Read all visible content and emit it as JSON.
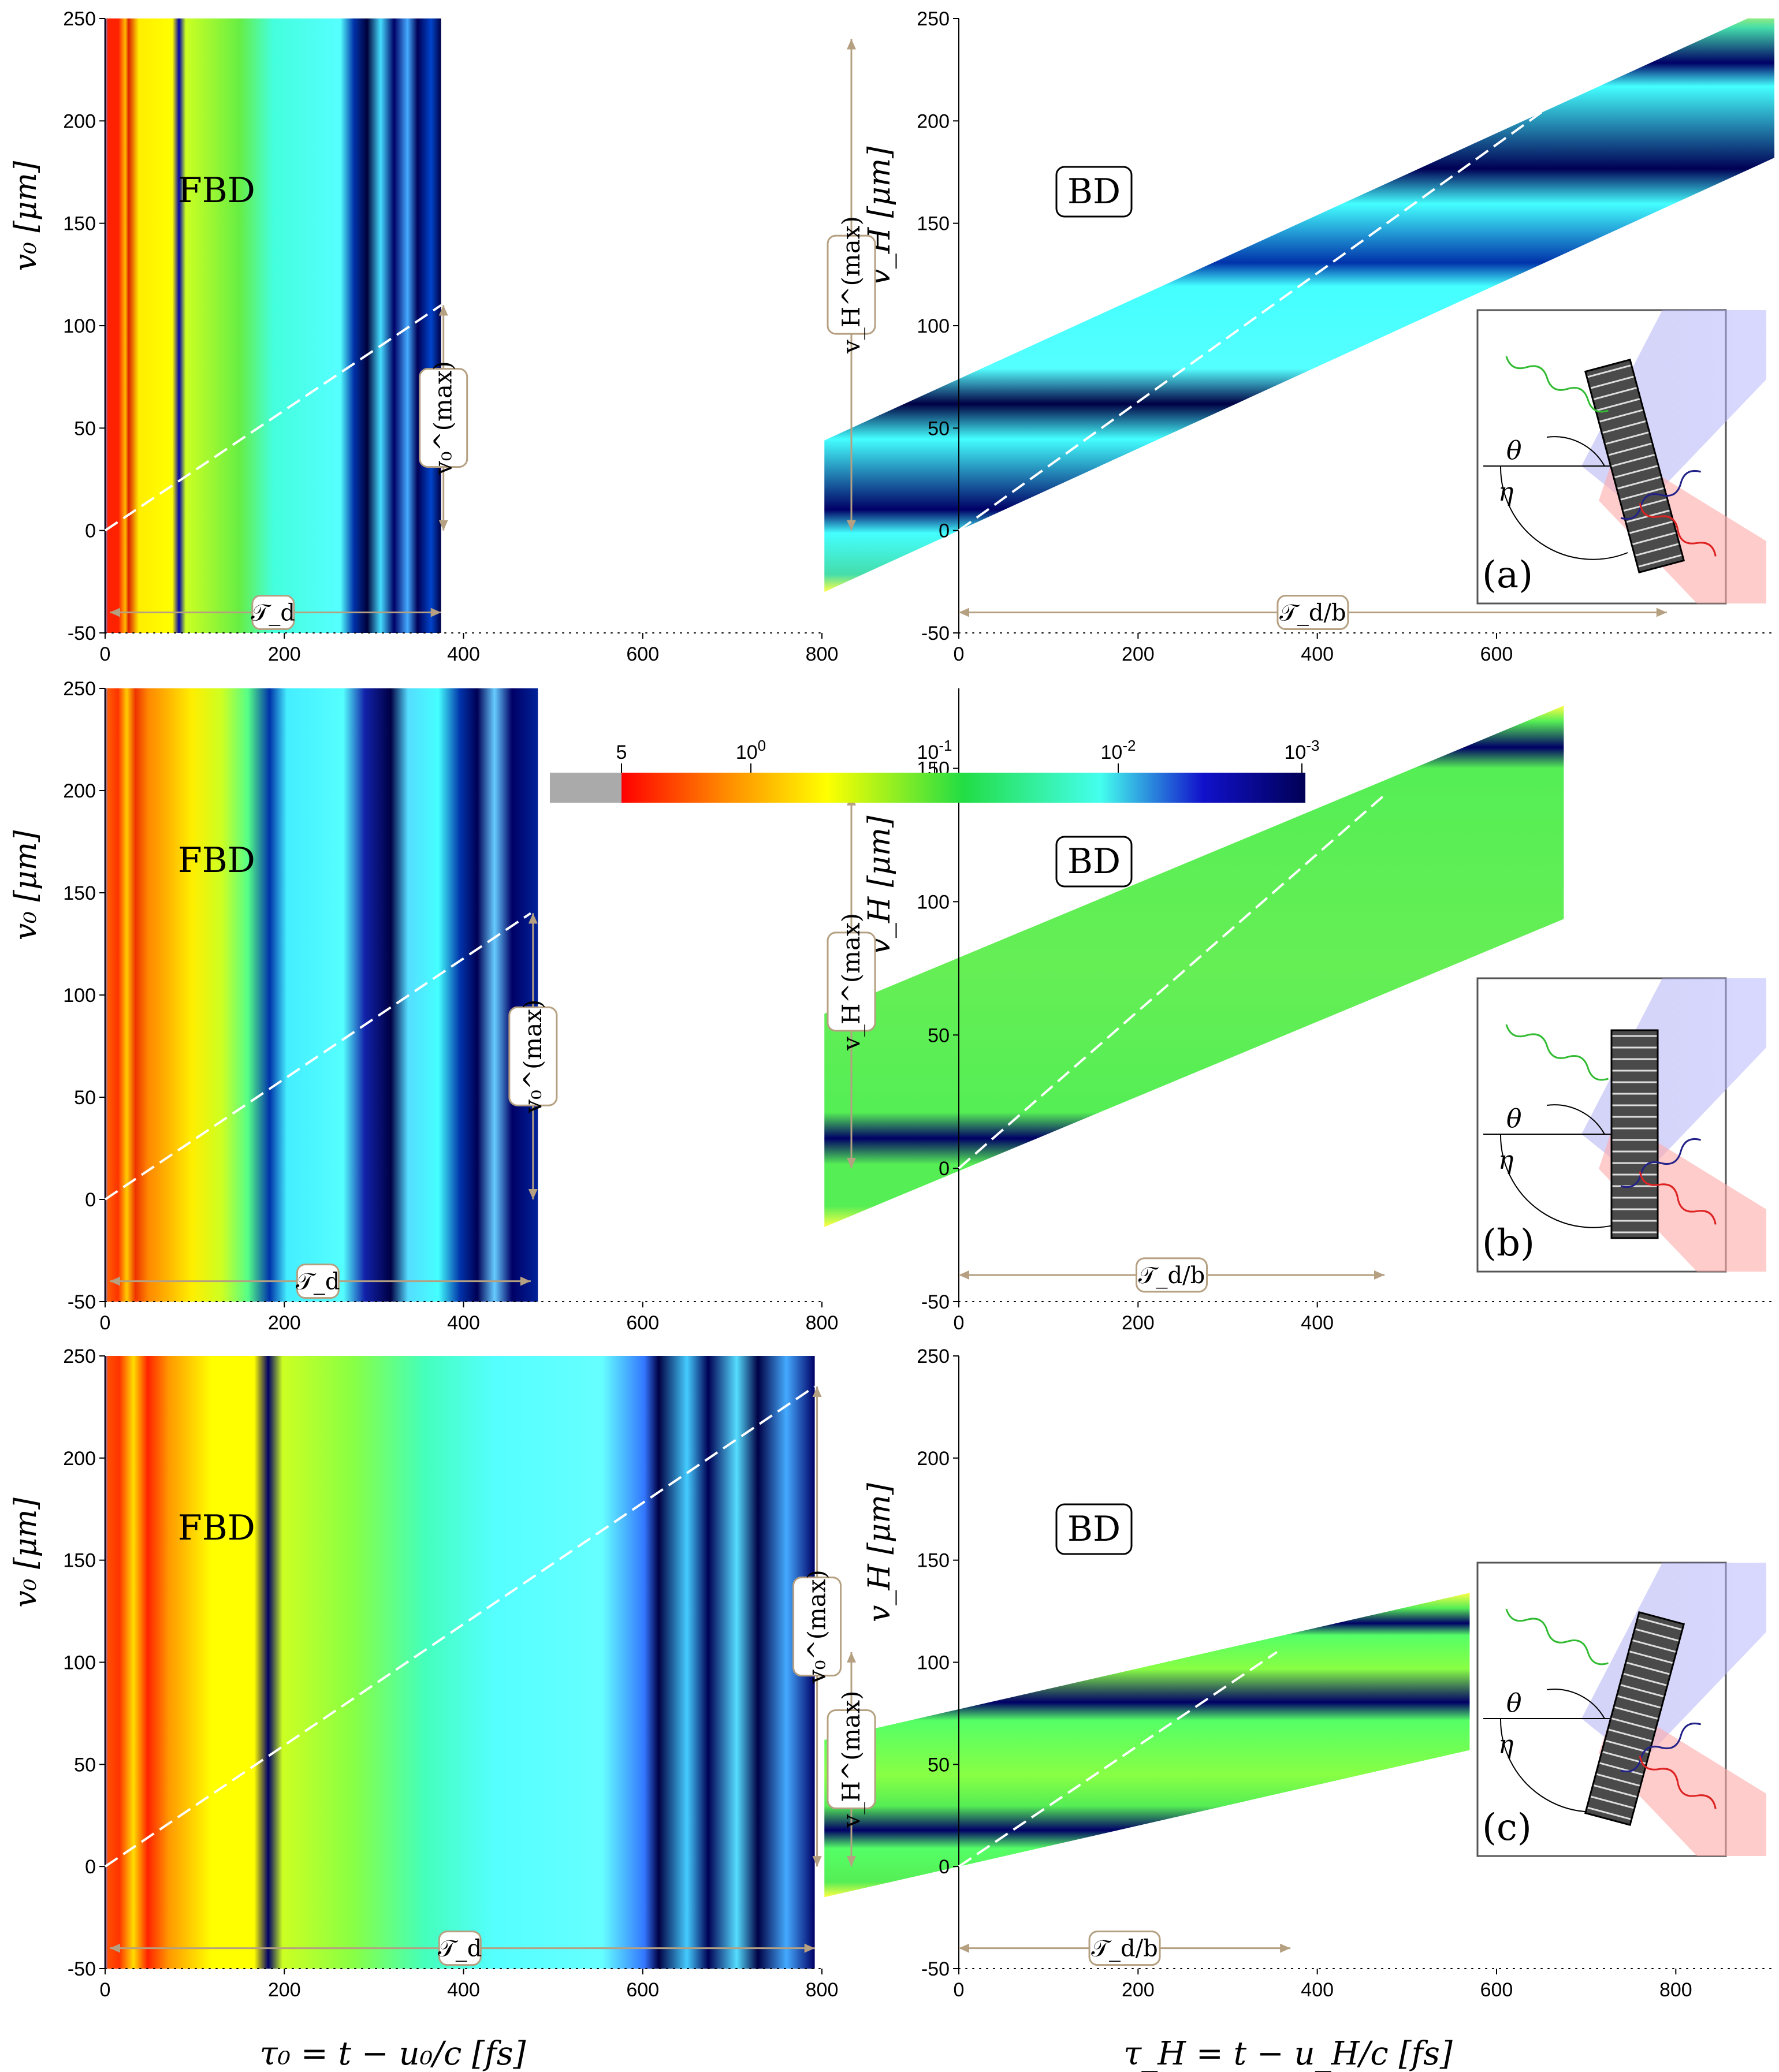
{
  "figure": {
    "panel_letters": [
      "(a)",
      "(b)",
      "(c)"
    ],
    "fbd_label": "FBD",
    "bd_label": "BD",
    "annotations": {
      "v0_max": "v₀^(max)",
      "vH_max": "v_H^(max)",
      "Td": "𝒯_d",
      "Td_over_b": "𝒯_d/b",
      "theta": "θ",
      "eta": "η"
    },
    "xlabel_left": "τ₀ = t − u₀/c [fs]",
    "xlabel_right": "τ_H = t − u_H/c [fs]",
    "ylabel_left": "v₀ [μm]",
    "ylabel_right": "v_H [μm]"
  },
  "colorbar": {
    "tick_labels": [
      "5",
      "10^0",
      "10^-1",
      "10^-2",
      "10^-3"
    ],
    "colors": [
      "#aaaaaa",
      "#ff0000",
      "#ffff00",
      "#22dd44",
      "#44ffee",
      "#1111cc",
      "#000055"
    ]
  },
  "chart_data": [
    {
      "type": "heatmap",
      "panel": "a-left",
      "label": "FBD",
      "xlim": [
        0,
        800
      ],
      "ylim": [
        -50,
        250
      ],
      "x_ticks": [
        0,
        200,
        400,
        600,
        800
      ],
      "y_ticks": [
        -50,
        0,
        50,
        100,
        150,
        200,
        250
      ],
      "ylabel": "v₀ [μm]",
      "data_extent_x": [
        0,
        375
      ],
      "dashed_line": [
        [
          0,
          0
        ],
        [
          375,
          110
        ]
      ],
      "v_max": 110,
      "Td": 375
    },
    {
      "type": "heatmap",
      "panel": "a-right",
      "label": "BD",
      "xlim": [
        0,
        910
      ],
      "ylim": [
        -50,
        250
      ],
      "x_ticks": [
        0,
        200,
        400,
        600
      ],
      "y_ticks": [
        -50,
        0,
        50,
        100,
        150,
        200,
        250
      ],
      "ylabel": "v_H [μm]",
      "band": {
        "x0": -150,
        "x1": 915,
        "lower_at_start": -30,
        "upper_at_start": 44,
        "slope": 0.2
      },
      "dashed_line": [
        [
          0,
          0
        ],
        [
          780,
          245
        ]
      ],
      "v_max": 240,
      "Td_over_b": 790
    },
    {
      "type": "heatmap",
      "panel": "b-left",
      "label": "FBD",
      "xlim": [
        0,
        800
      ],
      "ylim": [
        -50,
        250
      ],
      "x_ticks": [
        0,
        200,
        400,
        600,
        800
      ],
      "y_ticks": [
        -50,
        0,
        50,
        100,
        150,
        200,
        250
      ],
      "ylabel": "v₀ [μm]",
      "data_extent_x": [
        0,
        483
      ],
      "dashed_line": [
        [
          0,
          0
        ],
        [
          475,
          140
        ]
      ],
      "v_max": 140,
      "Td": 475
    },
    {
      "type": "heatmap",
      "panel": "b-right",
      "label": "BD",
      "xlim": [
        0,
        910
      ],
      "ylim": [
        -50,
        180
      ],
      "x_ticks": [
        0,
        200,
        400
      ],
      "y_ticks": [
        -50,
        0,
        50,
        100,
        150
      ],
      "ylabel": "v_H [μm]",
      "band": {
        "x0": -150,
        "x1": 675,
        "lower_at_start": -22,
        "upper_at_start": 58,
        "slope": 0.14
      },
      "dashed_line": [
        [
          0,
          0
        ],
        [
          475,
          140
        ]
      ],
      "v_max": 140,
      "Td_over_b": 475
    },
    {
      "type": "heatmap",
      "panel": "c-left",
      "label": "FBD",
      "xlim": [
        0,
        800
      ],
      "ylim": [
        -50,
        250
      ],
      "x_ticks": [
        0,
        200,
        400,
        600,
        800
      ],
      "y_ticks": [
        -50,
        0,
        50,
        100,
        150,
        200,
        250
      ],
      "ylabel": "v₀ [μm]",
      "data_extent_x": [
        0,
        792
      ],
      "dashed_line": [
        [
          0,
          0
        ],
        [
          792,
          235
        ]
      ],
      "v_max": 235,
      "Td": 792
    },
    {
      "type": "heatmap",
      "panel": "c-right",
      "label": "BD",
      "xlim": [
        0,
        910
      ],
      "ylim": [
        -50,
        250
      ],
      "x_ticks": [
        0,
        200,
        400,
        600,
        800
      ],
      "y_ticks": [
        -50,
        0,
        50,
        100,
        150,
        200,
        250
      ],
      "ylabel": "v_H [μm]",
      "band": {
        "x0": -150,
        "x1": 570,
        "lower_at_start": -15,
        "upper_at_start": 62,
        "slope": 0.1
      },
      "dashed_line": [
        [
          0,
          0
        ],
        [
          355,
          105
        ]
      ],
      "v_max": 105,
      "Td_over_b": 370
    }
  ]
}
